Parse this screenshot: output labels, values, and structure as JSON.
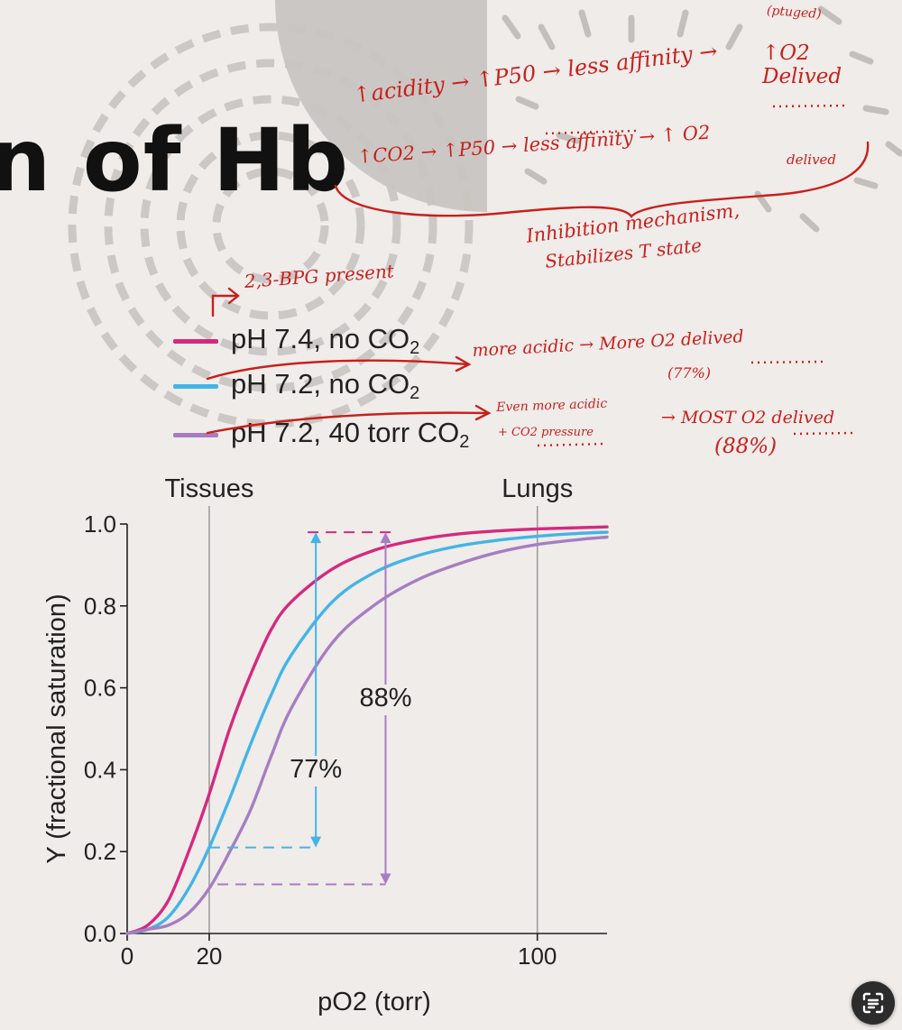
{
  "slide": {
    "title": "n of Hb",
    "legend": [
      {
        "label": "pH 7.4, no CO",
        "sub": "2",
        "color": "#d42a7e"
      },
      {
        "label": "pH 7.2, no CO",
        "sub": "2",
        "color": "#44b4e6"
      },
      {
        "label": "pH 7.2, 40 torr CO",
        "sub": "2",
        "color": "#a77dc0"
      }
    ]
  },
  "annotations": {
    "top_partial": "(ptuged)",
    "o2_delivered": "↑O2 Delived",
    "acidity": "↑acidity → ↑P50 → less affinity →",
    "co2": "↑CO2 → ↑P50 → less affinity → ↑ O2",
    "co2_tail": "delived",
    "inhibition_1": "Inhibition mechanism,",
    "inhibition_2": "Stabilizes T state",
    "bpg": "2,3-BPG present",
    "more_acidic": "more acidic → More O2 delived",
    "pct77": "(77%)",
    "even_more_1": "Even more acidic",
    "even_more_2": "+ CO2 pressure",
    "most_o2": "→ MOST O2 delived",
    "pct88": "(88%)"
  },
  "chart_data": {
    "type": "line",
    "xlabel": "pO2 (torr)",
    "ylabel": "Y (fractional saturation)",
    "xlim": [
      0,
      117
    ],
    "ylim": [
      0,
      1.0
    ],
    "x_ticks": [
      0,
      20,
      100
    ],
    "y_ticks": [
      "0.0",
      "0.2",
      "0.4",
      "0.6",
      "0.8",
      "1.0"
    ],
    "reference_lines": [
      {
        "x": 20,
        "label": "Tissues"
      },
      {
        "x": 100,
        "label": "Lungs"
      }
    ],
    "series": [
      {
        "name": "pH 7.4, no CO2",
        "color": "#d42a7e",
        "x": [
          0,
          5,
          10,
          15,
          20,
          25,
          30,
          35,
          40,
          50,
          60,
          70,
          80,
          90,
          100,
          110,
          117
        ],
        "y": [
          0,
          0.02,
          0.08,
          0.2,
          0.34,
          0.5,
          0.63,
          0.74,
          0.81,
          0.89,
          0.935,
          0.96,
          0.975,
          0.983,
          0.988,
          0.991,
          0.993
        ]
      },
      {
        "name": "pH 7.2, no CO2",
        "color": "#44b4e6",
        "x": [
          0,
          5,
          10,
          15,
          20,
          25,
          30,
          35,
          40,
          50,
          60,
          70,
          80,
          90,
          100,
          110,
          117
        ],
        "y": [
          0,
          0.01,
          0.04,
          0.11,
          0.21,
          0.33,
          0.46,
          0.58,
          0.68,
          0.81,
          0.88,
          0.92,
          0.945,
          0.96,
          0.97,
          0.977,
          0.98
        ]
      },
      {
        "name": "pH 7.2, 40 torr CO2",
        "color": "#a77dc0",
        "x": [
          0,
          5,
          10,
          15,
          20,
          25,
          30,
          35,
          40,
          50,
          60,
          70,
          80,
          90,
          100,
          110,
          117
        ],
        "y": [
          0,
          0.01,
          0.02,
          0.05,
          0.11,
          0.2,
          0.3,
          0.43,
          0.55,
          0.71,
          0.8,
          0.86,
          0.9,
          0.93,
          0.95,
          0.962,
          0.968
        ]
      }
    ],
    "delivery_annotations": [
      {
        "label": "77%",
        "x": 46,
        "y_low": 0.21,
        "y_high": 0.98,
        "color": "#44b4e6"
      },
      {
        "label": "88%",
        "x": 63,
        "y_low": 0.12,
        "y_high": 0.98,
        "color": "#a77dc0"
      }
    ]
  }
}
